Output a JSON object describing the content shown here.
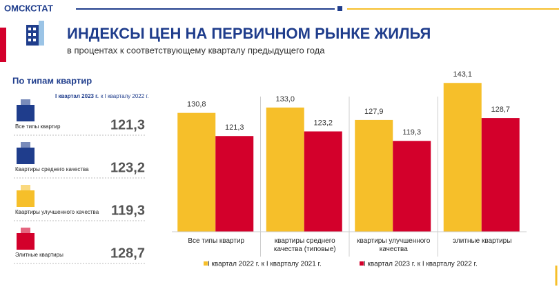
{
  "header": {
    "brand": "ОМСКСТАТ",
    "title": "ИНДЕКСЫ ЦЕН НА ПЕРВИЧНОМ РЫНКЕ ЖИЛЬЯ",
    "subtitle": "в процентах к соответствующему кварталу предыдущего года"
  },
  "side": {
    "title": "По типам квартир",
    "note_bold": "I квартал 2023 г.",
    "note": "к I кварталу 2022 г.",
    "rows": [
      {
        "label": "Все типы квартир",
        "value": "121,3"
      },
      {
        "label": "Квартиры среднего качества",
        "value": "123,2"
      },
      {
        "label": "Квартиры улучшенного качества",
        "value": "119,3"
      },
      {
        "label": "Элитные квартиры",
        "value": "128,7"
      }
    ]
  },
  "chart_data": {
    "type": "bar",
    "categories": [
      "Все типы квартир",
      "квартиры среднего качества (типовые)",
      "квартиры улучшенного качества",
      "элитные квартиры"
    ],
    "series": [
      {
        "name": "I квартал 2022 г. к I кварталу 2021 г.",
        "color": "#f6bf2a",
        "values": [
          130.8,
          133.0,
          127.9,
          143.1
        ],
        "value_labels": [
          "130,8",
          "133,0",
          "127,9",
          "143,1"
        ]
      },
      {
        "name": "I квартал 2023 г. к I кварталу 2022 г.",
        "color": "#d3002b",
        "values": [
          121.3,
          123.2,
          119.3,
          128.7
        ],
        "value_labels": [
          "121,3",
          "123,2",
          "119,3",
          "128,7"
        ]
      }
    ],
    "ylim": [
      82,
      146
    ]
  }
}
